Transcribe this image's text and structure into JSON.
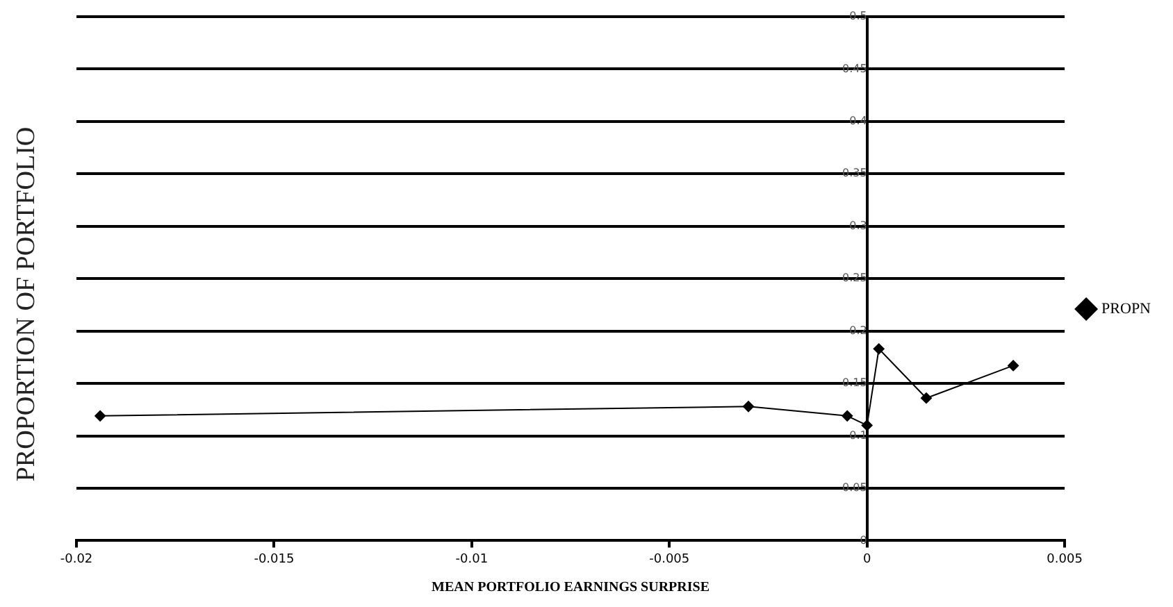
{
  "chart_data": {
    "type": "line",
    "xlabel": "MEAN PORTFOLIO EARNINGS SURPRISE",
    "ylabel": "PROPORTION OF PORTFOLIO",
    "x": [
      -0.0194,
      -0.003,
      -0.0005,
      0,
      0.0003,
      0.0015,
      0.0037
    ],
    "series": [
      {
        "name": "PROPN",
        "color": "#000000",
        "values": [
          0.119,
          0.128,
          0.119,
          0.11,
          0.183,
          0.136,
          0.167
        ]
      }
    ],
    "xlim": [
      -0.02,
      0.005
    ],
    "xticks": [
      -0.02,
      -0.015,
      -0.01,
      -0.005,
      0,
      0.005
    ],
    "ylim": [
      0,
      0.5
    ],
    "yticks": [
      0,
      0.05,
      0.1,
      0.15,
      0.2,
      0.25,
      0.3,
      0.35,
      0.4,
      0.45,
      0.5
    ],
    "grid": "y",
    "legend": "right",
    "marker": "diamond",
    "line_style": "solid"
  }
}
